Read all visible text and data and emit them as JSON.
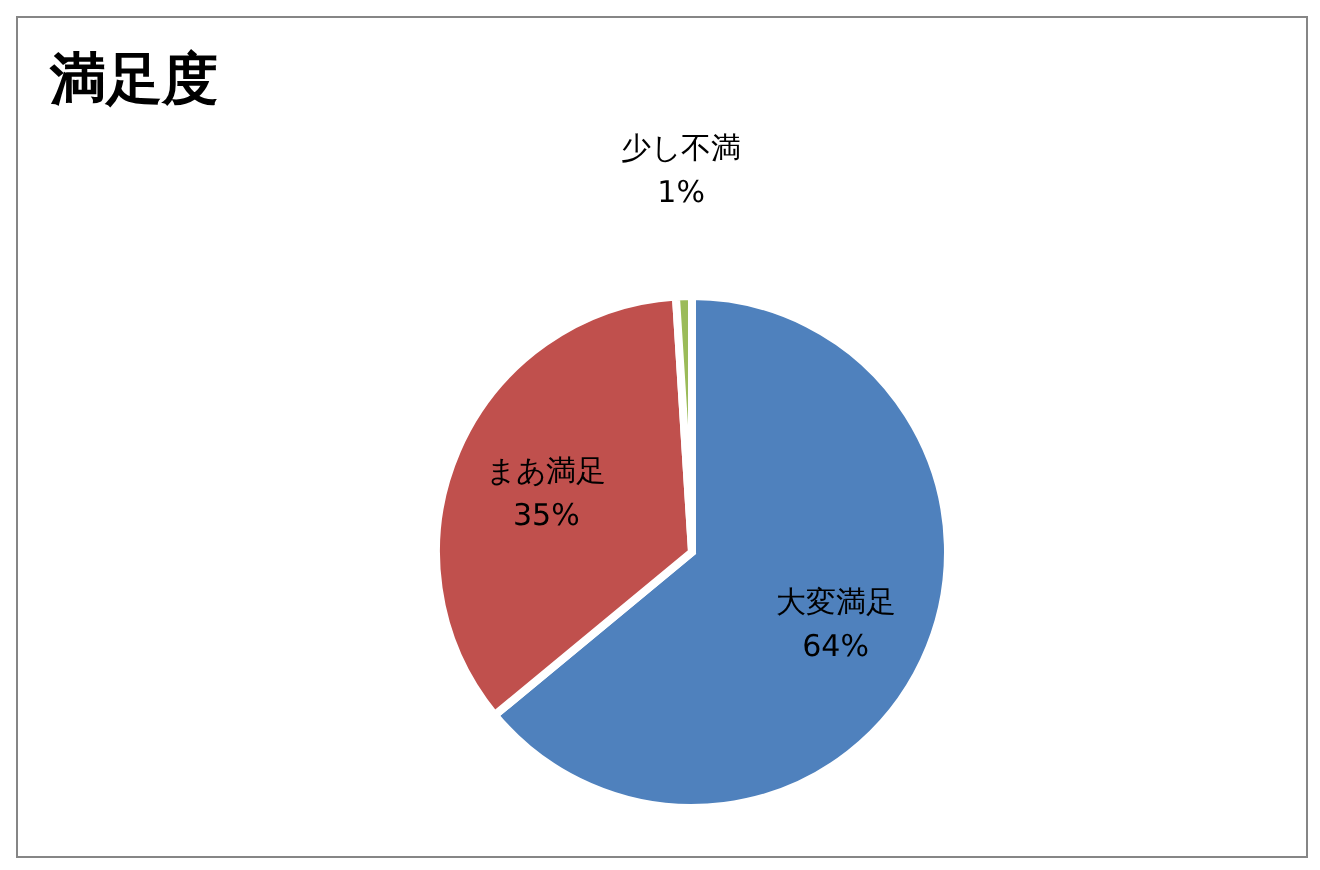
{
  "chart_data": {
    "type": "pie",
    "title": "満足度",
    "categories": [
      "大変満足",
      "まあ満足",
      "少し不満"
    ],
    "values": [
      64,
      35,
      1
    ],
    "colors": [
      "#4f81bd",
      "#c0504d",
      "#9bbb59"
    ],
    "data_labels": true,
    "value_labels": [
      "64%",
      "35%",
      "1%"
    ],
    "legend": false
  }
}
